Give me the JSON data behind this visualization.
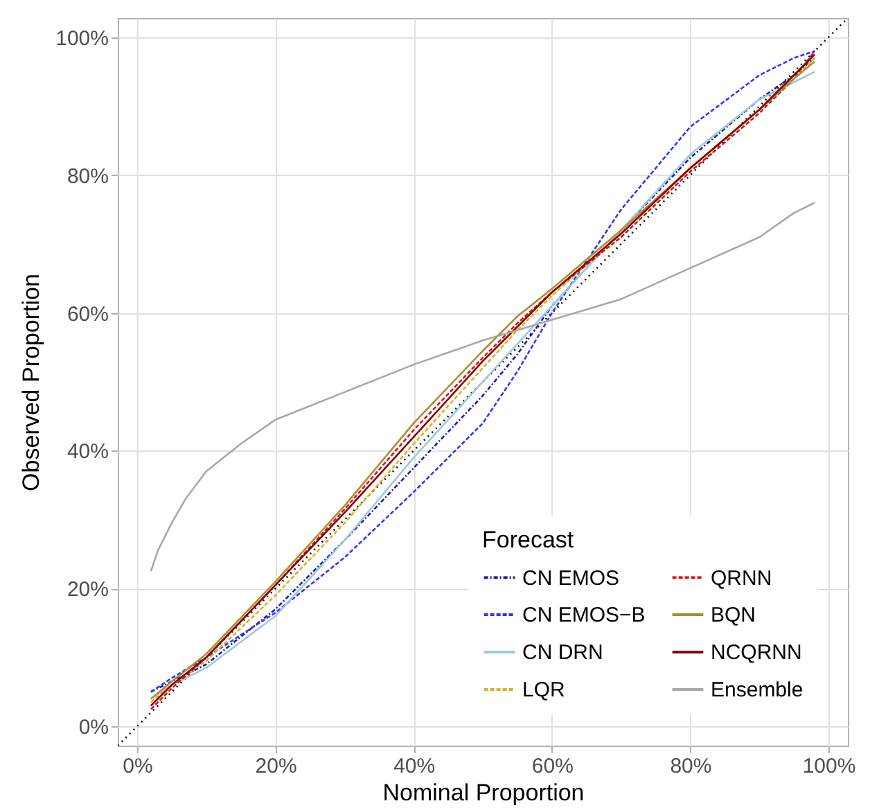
{
  "chart_data": {
    "type": "line",
    "xlabel": "Nominal Proportion",
    "ylabel": "Observed Proportion",
    "legend_title": "Forecast",
    "legend": "bottom right",
    "grid": true,
    "xlim": [
      -2.8,
      102.8
    ],
    "ylim": [
      -2.8,
      102.8
    ],
    "xticks": [
      {
        "value": 0,
        "label": "0%"
      },
      {
        "value": 20,
        "label": "20%"
      },
      {
        "value": 40,
        "label": "40%"
      },
      {
        "value": 60,
        "label": "60%"
      },
      {
        "value": 80,
        "label": "80%"
      },
      {
        "value": 100,
        "label": "100%"
      }
    ],
    "yticks": [
      {
        "value": 0,
        "label": "0%"
      },
      {
        "value": 20,
        "label": "20%"
      },
      {
        "value": 40,
        "label": "40%"
      },
      {
        "value": 60,
        "label": "60%"
      },
      {
        "value": 80,
        "label": "80%"
      },
      {
        "value": 100,
        "label": "100%"
      }
    ],
    "x": [
      2,
      5,
      10,
      20,
      30,
      40,
      50,
      55,
      60,
      70,
      80,
      90,
      95,
      98
    ],
    "series": [
      {
        "color": "#000000",
        "line_style": "dotted",
        "x": [
          -2.8,
          102.8
        ],
        "values": [
          -2.8,
          102.8
        ]
      },
      {
        "name": "CN EMOS",
        "color": "#1a1ab0",
        "line_style": "dashdot",
        "values": [
          5,
          6.5,
          9,
          17,
          27,
          37.5,
          48,
          54,
          61,
          72,
          82.5,
          91,
          94.5,
          97
        ]
      },
      {
        "name": "CN EMOS−B",
        "color": "#3333ff",
        "line_style": "dashed",
        "values": [
          5,
          7,
          10,
          16.5,
          24.5,
          34,
          44,
          51.5,
          60,
          75,
          87,
          94.5,
          97,
          98
        ]
      },
      {
        "name": "CN DRN",
        "color": "#9ec9dc",
        "line_style": "solid",
        "values": [
          4,
          6,
          8.5,
          16,
          27,
          39,
          50,
          55.5,
          61,
          72,
          83,
          91,
          93.5,
          95
        ]
      },
      {
        "name": "LQR",
        "color": "#e0b020",
        "line_style": "dashed",
        "values": [
          3.5,
          6,
          9.5,
          19,
          29.5,
          41,
          52,
          57.5,
          62.5,
          71.5,
          81,
          89.5,
          94,
          97
        ]
      },
      {
        "name": "QRNN",
        "color": "#e01010",
        "line_style": "dashed",
        "values": [
          2.5,
          5.5,
          10,
          20.5,
          31.5,
          43,
          53.5,
          58.5,
          63,
          71,
          80.5,
          89,
          94,
          98
        ]
      },
      {
        "name": "BQN",
        "color": "#a89030",
        "line_style": "solid",
        "values": [
          4,
          6.5,
          10.5,
          21,
          32,
          44,
          54.5,
          59.5,
          63.5,
          72,
          81,
          89.5,
          94,
          96.5
        ]
      },
      {
        "name": "NCQRNN",
        "color": "#8b0000",
        "line_style": "solid",
        "values": [
          3,
          6,
          10,
          20.5,
          31,
          42,
          53,
          58,
          63,
          71.5,
          81,
          89.5,
          94.5,
          97.5
        ]
      },
      {
        "name": "Ensemble",
        "color": "#a8a8a8",
        "line_style": "solid",
        "x": [
          2,
          3,
          5,
          7,
          10,
          15,
          20,
          30,
          40,
          50,
          55,
          60,
          70,
          80,
          90,
          95,
          98
        ],
        "values": [
          22.5,
          25.5,
          29.5,
          33,
          37,
          41,
          44.5,
          48.5,
          52.5,
          56,
          57.5,
          59,
          62,
          66.5,
          71,
          74.5,
          76
        ]
      }
    ]
  }
}
